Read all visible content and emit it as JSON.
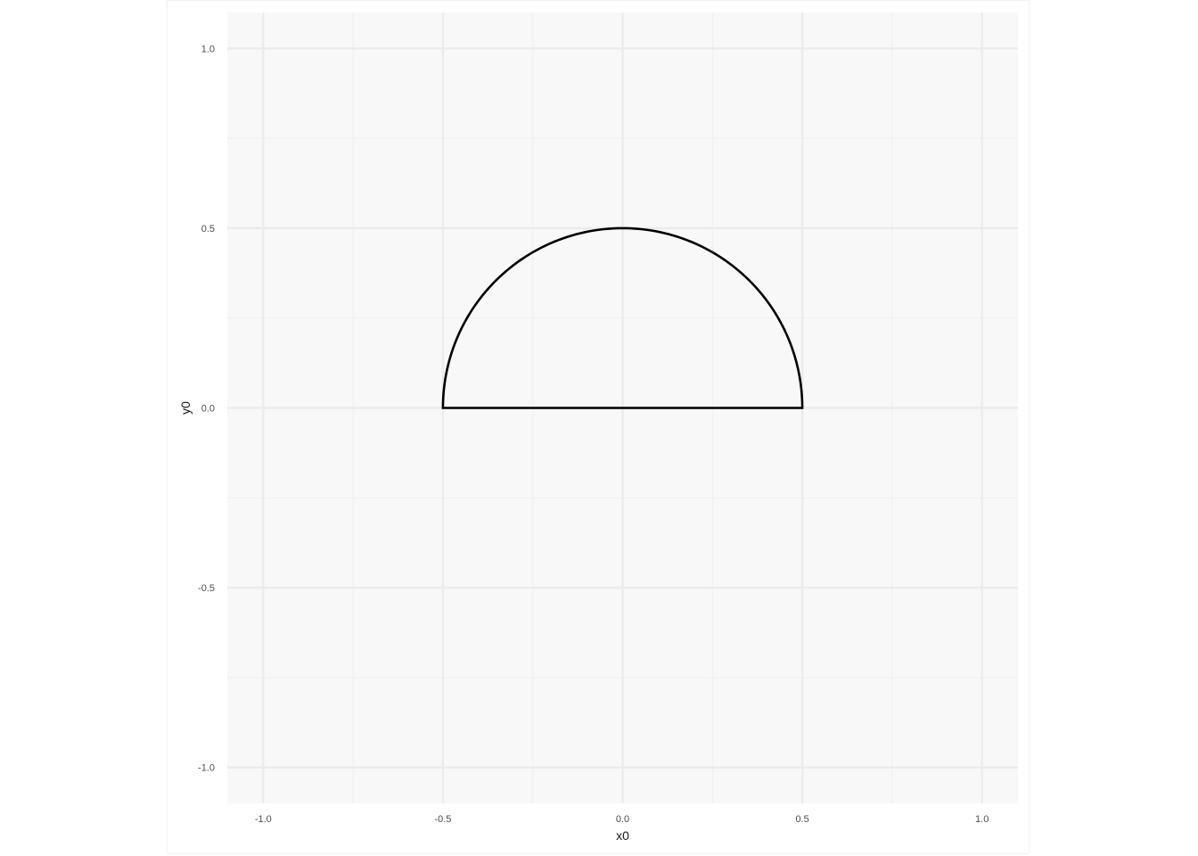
{
  "chart_data": {
    "type": "line",
    "title": "",
    "xlabel": "x0",
    "ylabel": "y0",
    "xlim": [
      -1.1,
      1.1
    ],
    "ylim": [
      -1.1,
      1.1
    ],
    "x_ticks": [
      -1.0,
      -0.5,
      0.0,
      0.5,
      1.0
    ],
    "x_tick_labels": [
      "-1.0",
      "-0.5",
      "0.0",
      "0.5",
      "1.0"
    ],
    "y_ticks": [
      -1.0,
      -0.5,
      0.0,
      0.5,
      1.0
    ],
    "y_tick_labels": [
      "-1.0",
      "-0.5",
      "0.0",
      "0.5",
      "1.0"
    ],
    "minor_ticks": [
      -0.75,
      -0.25,
      0.25,
      0.75
    ],
    "grid": true,
    "legend": "none",
    "series": [
      {
        "shape": "semicircle",
        "center": [
          0,
          0
        ],
        "radius": 0.5,
        "angle_range_deg": [
          0,
          180
        ],
        "closed": true,
        "color": "#000000"
      }
    ],
    "colors": {
      "panel_background": "#f8f8f8",
      "grid_major": "#ebebeb",
      "grid_minor": "#f0f0f0",
      "line": "#000000"
    }
  }
}
